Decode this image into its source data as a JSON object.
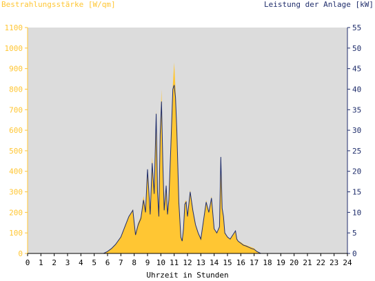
{
  "chart_data": {
    "type": "area",
    "left_axis_title": "Bestrahlungsstärke [W/qm]",
    "right_axis_title": "Leistung der Anlage [kW]",
    "xlabel": "Uhrzeit in Stunden",
    "x_ticks": [
      "0",
      "1",
      "2",
      "3",
      "4",
      "5",
      "6",
      "7",
      "8",
      "9",
      "10",
      "11",
      "12",
      "13",
      "14",
      "15",
      "16",
      "17",
      "18",
      "19",
      "20",
      "21",
      "22",
      "23",
      "24"
    ],
    "left_ticks": [
      "0",
      "100",
      "200",
      "300",
      "400",
      "500",
      "600",
      "700",
      "800",
      "900",
      "1000",
      "1100"
    ],
    "right_ticks": [
      "0",
      "5",
      "10",
      "15",
      "20",
      "25",
      "30",
      "35",
      "40",
      "45",
      "50",
      "55"
    ],
    "xlim": [
      0,
      24
    ],
    "ylim_left": [
      0,
      1100
    ],
    "ylim_right": [
      0,
      55
    ],
    "colors": {
      "irradiance": "#ffc633",
      "power": "#1f2d6b",
      "plot_bg": "#dcdcdc"
    },
    "series": [
      {
        "name": "Bestrahlungsstärke [W/qm]",
        "axis": "left",
        "x": [
          0,
          5.7,
          6.0,
          6.3,
          6.6,
          7.0,
          7.3,
          7.6,
          7.9,
          8.1,
          8.3,
          8.5,
          8.7,
          8.85,
          9.0,
          9.2,
          9.35,
          9.5,
          9.65,
          9.75,
          9.85,
          9.95,
          10.05,
          10.15,
          10.25,
          10.4,
          10.5,
          10.6,
          10.75,
          10.9,
          11.0,
          11.1,
          11.2,
          11.35,
          11.5,
          11.6,
          11.7,
          11.8,
          11.9,
          12.0,
          12.2,
          12.4,
          12.6,
          12.8,
          13.0,
          13.2,
          13.4,
          13.6,
          13.8,
          14.0,
          14.2,
          14.4,
          14.5,
          14.6,
          14.7,
          14.8,
          15.0,
          15.2,
          15.4,
          15.6,
          15.7,
          15.8,
          16.0,
          16.2,
          16.4,
          16.6,
          16.8,
          17.0,
          17.2,
          17.5,
          17.8,
          18.0,
          18.3,
          18.6,
          19.0,
          19.3,
          19.5,
          24
        ],
        "y": [
          0,
          0,
          10,
          25,
          45,
          80,
          130,
          180,
          215,
          100,
          150,
          180,
          280,
          220,
          410,
          200,
          470,
          300,
          700,
          310,
          180,
          600,
          800,
          450,
          220,
          340,
          190,
          260,
          540,
          820,
          930,
          800,
          620,
          260,
          80,
          60,
          120,
          250,
          260,
          180,
          310,
          220,
          140,
          100,
          70,
          160,
          260,
          200,
          280,
          120,
          100,
          130,
          470,
          220,
          180,
          100,
          80,
          70,
          90,
          110,
          75,
          60,
          55,
          45,
          40,
          35,
          30,
          25,
          10,
          0,
          0,
          0,
          0,
          0,
          0,
          0,
          0,
          0
        ]
      },
      {
        "name": "Leistung der Anlage [kW]",
        "axis": "right",
        "x": [
          0,
          5.7,
          6.0,
          6.3,
          6.6,
          7.0,
          7.3,
          7.6,
          7.9,
          8.1,
          8.3,
          8.5,
          8.7,
          8.85,
          9.0,
          9.2,
          9.35,
          9.5,
          9.65,
          9.75,
          9.85,
          9.95,
          10.05,
          10.15,
          10.25,
          10.4,
          10.5,
          10.6,
          10.75,
          10.9,
          11.0,
          11.1,
          11.2,
          11.35,
          11.5,
          11.6,
          11.7,
          11.8,
          11.9,
          12.0,
          12.2,
          12.4,
          12.6,
          12.8,
          13.0,
          13.2,
          13.4,
          13.6,
          13.8,
          14.0,
          14.2,
          14.4,
          14.5,
          14.6,
          14.7,
          14.8,
          15.0,
          15.2,
          15.4,
          15.6,
          15.7,
          15.8,
          16.0,
          16.2,
          16.4,
          16.6,
          16.8,
          17.0,
          17.2,
          17.5,
          17.8,
          18.0,
          18.3,
          18.6,
          19.0,
          19.3,
          19.5,
          24
        ],
        "y": [
          0,
          0,
          0.5,
          1.2,
          2.2,
          4,
          6.5,
          9,
          10.5,
          4.5,
          7,
          8.5,
          13,
          10,
          20.5,
          9.5,
          22,
          14.5,
          34,
          15,
          9,
          29,
          37,
          22,
          10.5,
          16.5,
          9.5,
          13,
          26,
          40,
          41,
          38,
          30,
          12.5,
          4,
          3,
          6,
          12,
          12.5,
          9,
          15,
          10.5,
          7,
          5,
          3.5,
          8,
          12.5,
          10,
          13.5,
          6,
          5,
          6.5,
          23.5,
          11,
          9,
          5,
          4,
          3.5,
          4.5,
          5.5,
          3.5,
          3,
          2.5,
          2,
          1.8,
          1.5,
          1.2,
          1,
          0.5,
          0,
          0,
          0,
          0,
          0,
          0,
          0,
          0,
          0
        ]
      }
    ]
  }
}
